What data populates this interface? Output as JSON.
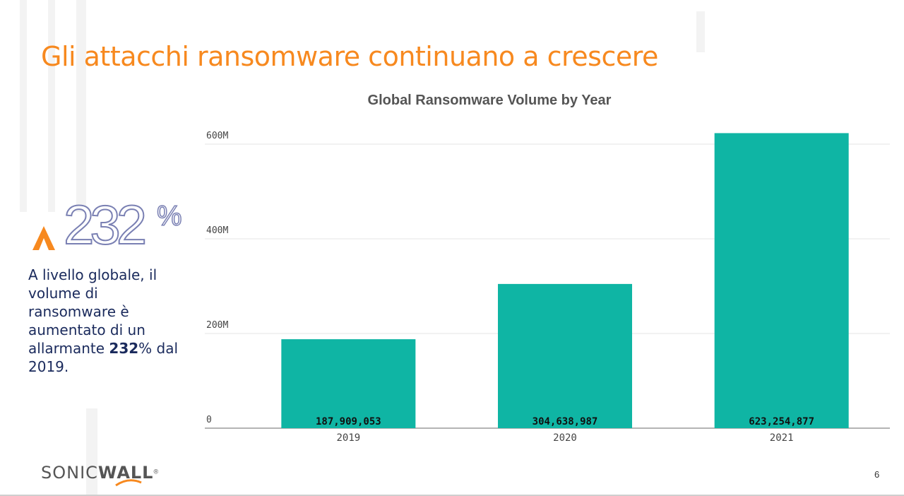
{
  "slide": {
    "title": "Gli attacchi ransomware continuano a crescere",
    "stat_number": "232",
    "stat_suffix": "%",
    "description_before": "A livello globale, il volume di ransomware è aumentato di un allarmante ",
    "description_bold": "232",
    "description_after": "% dal 2019.",
    "logo_part1": "SONIC",
    "logo_part2": "WALL",
    "logo_mark": "®",
    "page_number": "6",
    "accent_color": "#f7891f",
    "text_color": "#1a2a5c",
    "bar_color": "#0fb5a4",
    "icon_up_arrow": "caret-up-icon",
    "icon_logo_swoosh": "swoosh-icon"
  },
  "chart_data": {
    "type": "bar",
    "title": "Global Ransomware Volume by Year",
    "categories": [
      "2019",
      "2020",
      "2021"
    ],
    "values": [
      187909053,
      304638987,
      623254877
    ],
    "value_labels": [
      "187,909,053",
      "304,638,987",
      "623,254,877"
    ],
    "ylim": [
      0,
      600000000
    ],
    "yticks": [
      0,
      200000000,
      400000000,
      600000000
    ],
    "ytick_labels": [
      "0",
      "200M",
      "400M",
      "600M"
    ],
    "grid": true,
    "xlabel": "",
    "ylabel": ""
  }
}
